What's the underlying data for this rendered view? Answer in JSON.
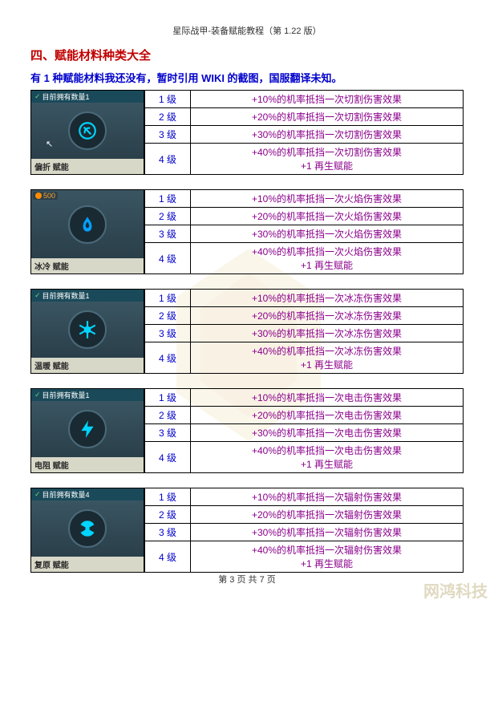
{
  "header": "星际战甲-装备赋能教程（第 1.22 版）",
  "section_title": "四、赋能材料种类大全",
  "subtitle": "有 1 种赋能材料我还没有，暂时引用 WIKI 的截图，国服翻译未知。",
  "footer": "第 3 页 共 7 页",
  "watermark_br": "网鸿科技",
  "materials": [
    {
      "qty_label": "目前拥有数量1",
      "name": "偏折 赋能",
      "icon": "deflect",
      "icon_color": "#00d4ff",
      "show_cursor": true,
      "levels": [
        {
          "lvl": "1 级",
          "desc": "+10%的机率抵挡一次切割伤害效果"
        },
        {
          "lvl": "2 级",
          "desc": "+20%的机率抵挡一次切割伤害效果"
        },
        {
          "lvl": "3 级",
          "desc": "+30%的机率抵挡一次切割伤害效果"
        },
        {
          "lvl": "4 级",
          "desc": "+40%的机率抵挡一次切割伤害效果\n+1 再生赋能"
        }
      ]
    },
    {
      "qty_label": "",
      "cost": "500",
      "name": "冰冷 赋能",
      "icon": "flame",
      "icon_color": "#00a0ff",
      "levels": [
        {
          "lvl": "1 级",
          "desc": "+10%的机率抵挡一次火焰伤害效果"
        },
        {
          "lvl": "2 级",
          "desc": "+20%的机率抵挡一次火焰伤害效果"
        },
        {
          "lvl": "3 级",
          "desc": "+30%的机率抵挡一次火焰伤害效果"
        },
        {
          "lvl": "4 级",
          "desc": "+40%的机率抵挡一次火焰伤害效果\n+1 再生赋能"
        }
      ]
    },
    {
      "qty_label": "目前拥有数量1",
      "name": "温暖 赋能",
      "icon": "snowflake",
      "icon_color": "#00d4ff",
      "levels": [
        {
          "lvl": "1 级",
          "desc": "+10%的机率抵挡一次冰冻伤害效果"
        },
        {
          "lvl": "2 级",
          "desc": "+20%的机率抵挡一次冰冻伤害效果"
        },
        {
          "lvl": "3 级",
          "desc": "+30%的机率抵挡一次冰冻伤害效果"
        },
        {
          "lvl": "4 级",
          "desc": "+40%的机率抵挡一次冰冻伤害效果\n+1 再生赋能"
        }
      ]
    },
    {
      "qty_label": "目前拥有数量1",
      "name": "电阻 赋能",
      "icon": "lightning",
      "icon_color": "#00d4ff",
      "levels": [
        {
          "lvl": "1 级",
          "desc": "+10%的机率抵挡一次电击伤害效果"
        },
        {
          "lvl": "2 级",
          "desc": "+20%的机率抵挡一次电击伤害效果"
        },
        {
          "lvl": "3 级",
          "desc": "+30%的机率抵挡一次电击伤害效果"
        },
        {
          "lvl": "4 级",
          "desc": "+40%的机率抵挡一次电击伤害效果\n+1 再生赋能"
        }
      ]
    },
    {
      "qty_label": "目前拥有数量4",
      "name": "复原 赋能",
      "icon": "radiation",
      "icon_color": "#00d4ff",
      "levels": [
        {
          "lvl": "1 级",
          "desc": "+10%的机率抵挡一次辐射伤害效果"
        },
        {
          "lvl": "2 级",
          "desc": "+20%的机率抵挡一次辐射伤害效果"
        },
        {
          "lvl": "3 级",
          "desc": "+30%的机率抵挡一次辐射伤害效果"
        },
        {
          "lvl": "4 级",
          "desc": "+40%的机率抵挡一次辐射伤害效果\n+1 再生赋能"
        }
      ]
    }
  ]
}
